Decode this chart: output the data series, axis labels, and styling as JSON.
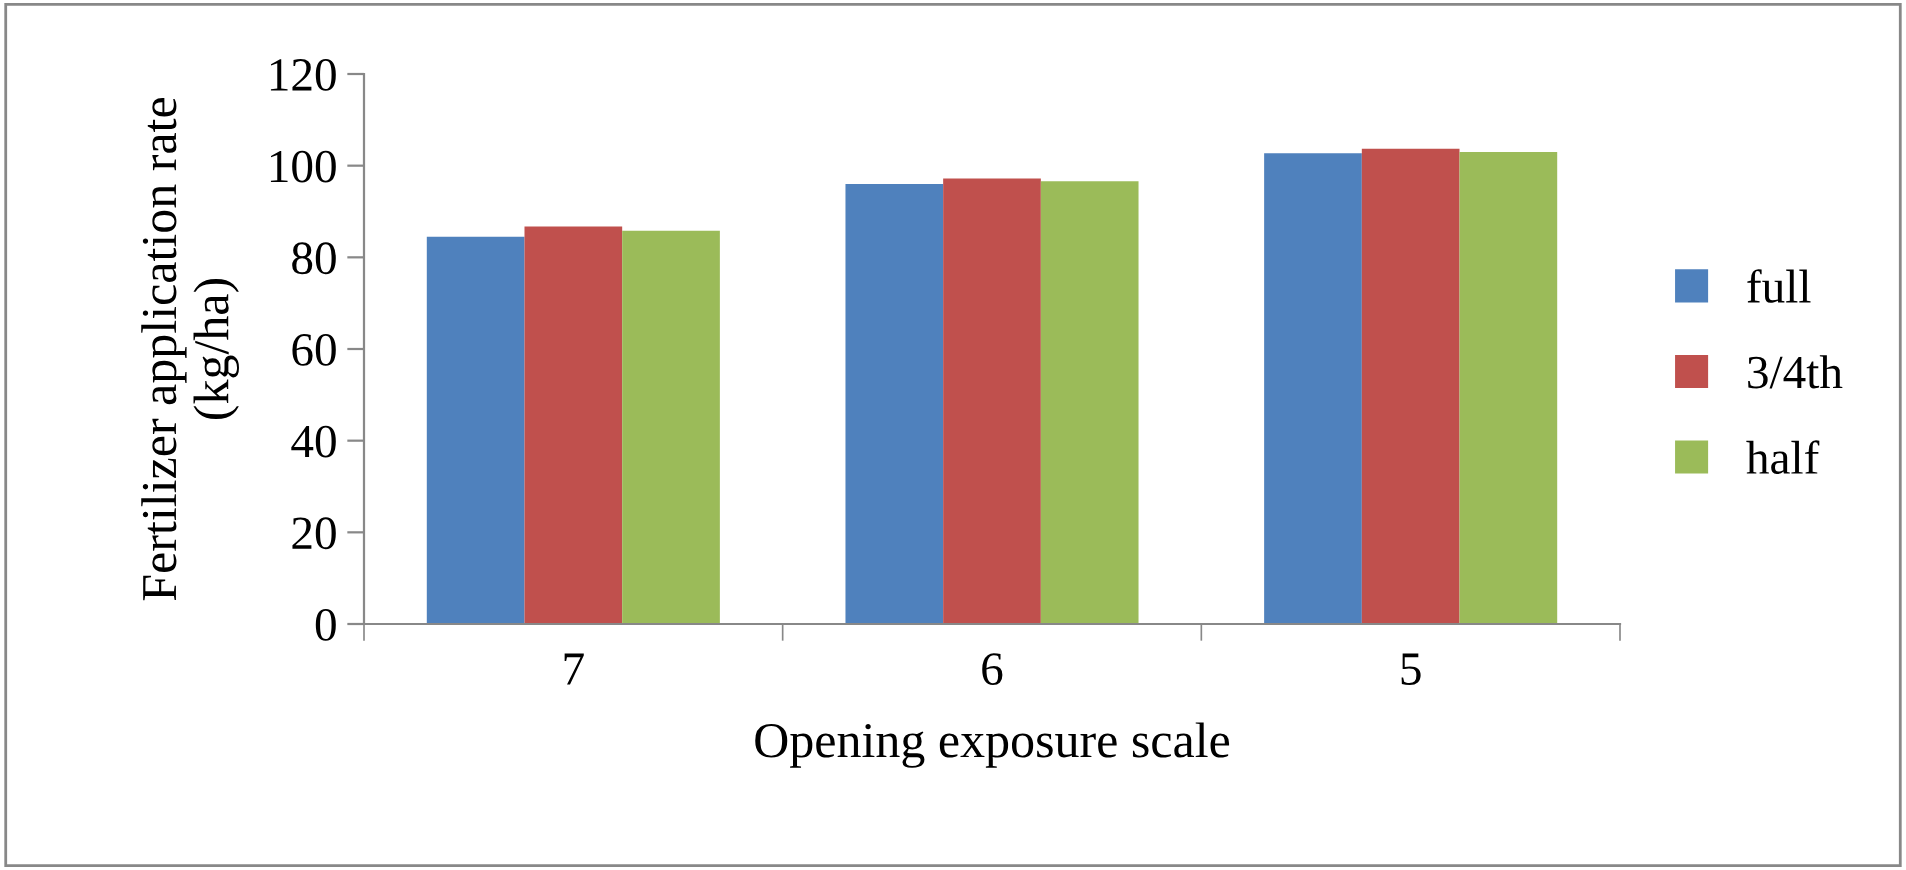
{
  "chart_data": {
    "type": "bar",
    "categories": [
      "7",
      "6",
      "5"
    ],
    "series": [
      {
        "name": "full",
        "color": "#4f81bd",
        "values": [
          84.5,
          96.0,
          102.7
        ]
      },
      {
        "name": "3/4th",
        "color": "#c0504d",
        "values": [
          86.7,
          97.2,
          103.7
        ]
      },
      {
        "name": "half",
        "color": "#9bbb59",
        "values": [
          85.8,
          96.6,
          103.0
        ]
      }
    ],
    "xlabel": "Opening exposure scale",
    "ylabel": "Fertilizer application rate\n(kg/ha)",
    "ylim": [
      0,
      120
    ],
    "yticks": [
      0,
      20,
      40,
      60,
      80,
      100,
      120
    ],
    "grid": false,
    "legend": "right"
  }
}
